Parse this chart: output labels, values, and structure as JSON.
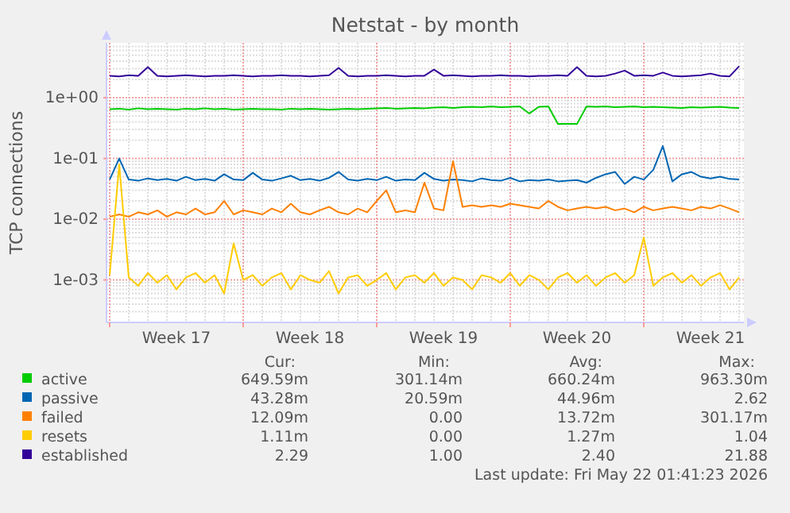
{
  "chart_data": {
    "type": "line",
    "title": "Netstat - by month",
    "ylabel": "TCP connections",
    "log": "y",
    "grid": true,
    "legend": "bottom",
    "ylim": [
      0.0002,
      8
    ],
    "yticks": [
      {
        "value": 0.001,
        "label": "1e-03"
      },
      {
        "value": 0.01,
        "label": "1e-02"
      },
      {
        "value": 0.1,
        "label": "1e-01"
      },
      {
        "value": 1,
        "label": "1e+00"
      }
    ],
    "xlim": [
      "2026-04-19T20:00",
      "2026-05-23T06:00"
    ],
    "xticks": [
      {
        "value": "2026-04-20",
        "label": null
      },
      {
        "value": "2026-04-27",
        "label": null
      },
      {
        "value": "2026-05-04",
        "label": null
      },
      {
        "value": "2026-05-11",
        "label": null
      },
      {
        "value": "2026-05-18",
        "label": null
      },
      {
        "value": "2026-04-23T12:00",
        "label": "Week 17"
      },
      {
        "value": "2026-04-30T12:00",
        "label": "Week 18"
      },
      {
        "value": "2026-05-07T12:00",
        "label": "Week 19"
      },
      {
        "value": "2026-05-14T12:00",
        "label": "Week 20"
      },
      {
        "value": "2026-05-21T12:00",
        "label": "Week 21"
      }
    ],
    "x": [
      "2026-04-20T00:00",
      "2026-04-20T12:00",
      "2026-04-21T00:00",
      "2026-04-21T12:00",
      "2026-04-22T00:00",
      "2026-04-22T12:00",
      "2026-04-23T00:00",
      "2026-04-23T12:00",
      "2026-04-24T00:00",
      "2026-04-24T12:00",
      "2026-04-25T00:00",
      "2026-04-25T12:00",
      "2026-04-26T00:00",
      "2026-04-26T12:00",
      "2026-04-27T00:00",
      "2026-04-27T12:00",
      "2026-04-28T00:00",
      "2026-04-28T12:00",
      "2026-04-29T00:00",
      "2026-04-29T12:00",
      "2026-04-30T00:00",
      "2026-04-30T12:00",
      "2026-05-01T00:00",
      "2026-05-01T12:00",
      "2026-05-02T00:00",
      "2026-05-02T12:00",
      "2026-05-03T00:00",
      "2026-05-03T12:00",
      "2026-05-04T00:00",
      "2026-05-04T12:00",
      "2026-05-05T00:00",
      "2026-05-05T12:00",
      "2026-05-06T00:00",
      "2026-05-06T12:00",
      "2026-05-07T00:00",
      "2026-05-07T12:00",
      "2026-05-08T00:00",
      "2026-05-08T12:00",
      "2026-05-09T00:00",
      "2026-05-09T12:00",
      "2026-05-10T00:00",
      "2026-05-10T12:00",
      "2026-05-11T00:00",
      "2026-05-11T12:00",
      "2026-05-12T00:00",
      "2026-05-12T12:00",
      "2026-05-13T00:00",
      "2026-05-13T12:00",
      "2026-05-14T00:00",
      "2026-05-14T12:00",
      "2026-05-15T00:00",
      "2026-05-15T12:00",
      "2026-05-16T00:00",
      "2026-05-16T12:00",
      "2026-05-17T00:00",
      "2026-05-17T12:00",
      "2026-05-18T00:00",
      "2026-05-18T12:00",
      "2026-05-19T00:00",
      "2026-05-19T12:00",
      "2026-05-20T00:00",
      "2026-05-20T12:00",
      "2026-05-21T00:00",
      "2026-05-21T12:00",
      "2026-05-22T00:00",
      "2026-05-22T12:00",
      "2026-05-23T00:00"
    ],
    "series": [
      {
        "name": "active",
        "color": "#00cc00",
        "values": [
          0.65,
          0.66,
          0.64,
          0.67,
          0.65,
          0.66,
          0.65,
          0.64,
          0.66,
          0.65,
          0.67,
          0.65,
          0.66,
          0.64,
          0.65,
          0.66,
          0.65,
          0.65,
          0.64,
          0.66,
          0.65,
          0.66,
          0.65,
          0.64,
          0.65,
          0.66,
          0.65,
          0.66,
          0.67,
          0.68,
          0.66,
          0.67,
          0.68,
          0.67,
          0.69,
          0.7,
          0.68,
          0.7,
          0.71,
          0.7,
          0.72,
          0.7,
          0.71,
          0.72,
          0.55,
          0.71,
          0.72,
          0.37,
          0.37,
          0.37,
          0.72,
          0.71,
          0.72,
          0.7,
          0.71,
          0.72,
          0.7,
          0.71,
          0.7,
          0.69,
          0.68,
          0.7,
          0.69,
          0.7,
          0.71,
          0.69,
          0.68
        ]
      },
      {
        "name": "passive",
        "color": "#0066b3",
        "values": [
          0.045,
          0.1,
          0.045,
          0.043,
          0.047,
          0.044,
          0.046,
          0.043,
          0.05,
          0.044,
          0.046,
          0.043,
          0.055,
          0.045,
          0.044,
          0.058,
          0.045,
          0.043,
          0.047,
          0.052,
          0.044,
          0.046,
          0.043,
          0.048,
          0.06,
          0.045,
          0.043,
          0.046,
          0.044,
          0.05,
          0.043,
          0.045,
          0.044,
          0.058,
          0.046,
          0.043,
          0.045,
          0.044,
          0.042,
          0.047,
          0.044,
          0.043,
          0.048,
          0.042,
          0.044,
          0.043,
          0.045,
          0.042,
          0.043,
          0.044,
          0.04,
          0.048,
          0.055,
          0.06,
          0.038,
          0.05,
          0.045,
          0.065,
          0.16,
          0.042,
          0.055,
          0.06,
          0.05,
          0.047,
          0.05,
          0.046,
          0.045
        ]
      },
      {
        "name": "failed",
        "color": "#ff8000",
        "values": [
          0.011,
          0.012,
          0.011,
          0.013,
          0.012,
          0.014,
          0.011,
          0.013,
          0.012,
          0.015,
          0.012,
          0.013,
          0.02,
          0.012,
          0.014,
          0.013,
          0.012,
          0.015,
          0.013,
          0.018,
          0.013,
          0.012,
          0.014,
          0.016,
          0.013,
          0.012,
          0.015,
          0.013,
          0.02,
          0.03,
          0.013,
          0.014,
          0.013,
          0.04,
          0.015,
          0.014,
          0.09,
          0.016,
          0.017,
          0.016,
          0.017,
          0.016,
          0.018,
          0.017,
          0.016,
          0.015,
          0.02,
          0.016,
          0.014,
          0.015,
          0.016,
          0.015,
          0.016,
          0.014,
          0.015,
          0.013,
          0.016,
          0.014,
          0.015,
          0.016,
          0.015,
          0.014,
          0.016,
          0.015,
          0.017,
          0.015,
          0.013
        ]
      },
      {
        "name": "resets",
        "color": "#ffcc00",
        "values": [
          0.0012,
          0.08,
          0.0011,
          0.0008,
          0.0013,
          0.0009,
          0.0012,
          0.0007,
          0.0011,
          0.0013,
          0.0009,
          0.0012,
          0.0006,
          0.004,
          0.001,
          0.0012,
          0.0008,
          0.0011,
          0.0013,
          0.0007,
          0.0012,
          0.001,
          0.0009,
          0.0014,
          0.0006,
          0.0011,
          0.0012,
          0.0008,
          0.001,
          0.0013,
          0.0007,
          0.0011,
          0.0012,
          0.0009,
          0.0013,
          0.0008,
          0.0011,
          0.001,
          0.0007,
          0.0012,
          0.0011,
          0.0009,
          0.0013,
          0.0008,
          0.0012,
          0.001,
          0.0007,
          0.0011,
          0.0013,
          0.0009,
          0.0012,
          0.0008,
          0.0011,
          0.0013,
          0.0009,
          0.0012,
          0.005,
          0.0008,
          0.0011,
          0.0013,
          0.0009,
          0.0012,
          0.0008,
          0.0011,
          0.0013,
          0.0007,
          0.0011
        ]
      },
      {
        "name": "established",
        "color": "#330099",
        "values": [
          2.3,
          2.25,
          2.35,
          2.3,
          3.2,
          2.3,
          2.25,
          2.3,
          2.35,
          2.3,
          2.25,
          2.3,
          2.3,
          2.35,
          2.3,
          2.25,
          2.3,
          2.3,
          2.35,
          2.3,
          2.3,
          2.25,
          2.3,
          2.35,
          3.1,
          2.3,
          2.25,
          2.3,
          2.3,
          2.35,
          2.3,
          2.25,
          2.3,
          2.3,
          2.9,
          2.3,
          2.35,
          2.3,
          2.25,
          2.3,
          2.3,
          2.35,
          2.3,
          2.3,
          2.25,
          2.3,
          2.3,
          2.35,
          2.3,
          3.2,
          2.3,
          2.25,
          2.3,
          2.5,
          2.8,
          2.3,
          2.35,
          2.3,
          2.6,
          2.3,
          2.25,
          2.3,
          2.35,
          2.5,
          2.3,
          2.25,
          3.3
        ]
      }
    ],
    "annotations": [
      "Cur:",
      "Min:",
      "Avg:",
      "Max:",
      "649.59m",
      "301.14m",
      "660.24m",
      "963.30m",
      "43.28m",
      "20.59m",
      "44.96m",
      "2.62",
      "12.09m",
      "0.00",
      "13.72m",
      "301.17m",
      "1.11m",
      "0.00",
      "1.27m",
      "1.04",
      "2.29",
      "1.00",
      "2.40",
      "21.88",
      "Last update: Fri May 22 01:41:23 2026"
    ]
  }
}
